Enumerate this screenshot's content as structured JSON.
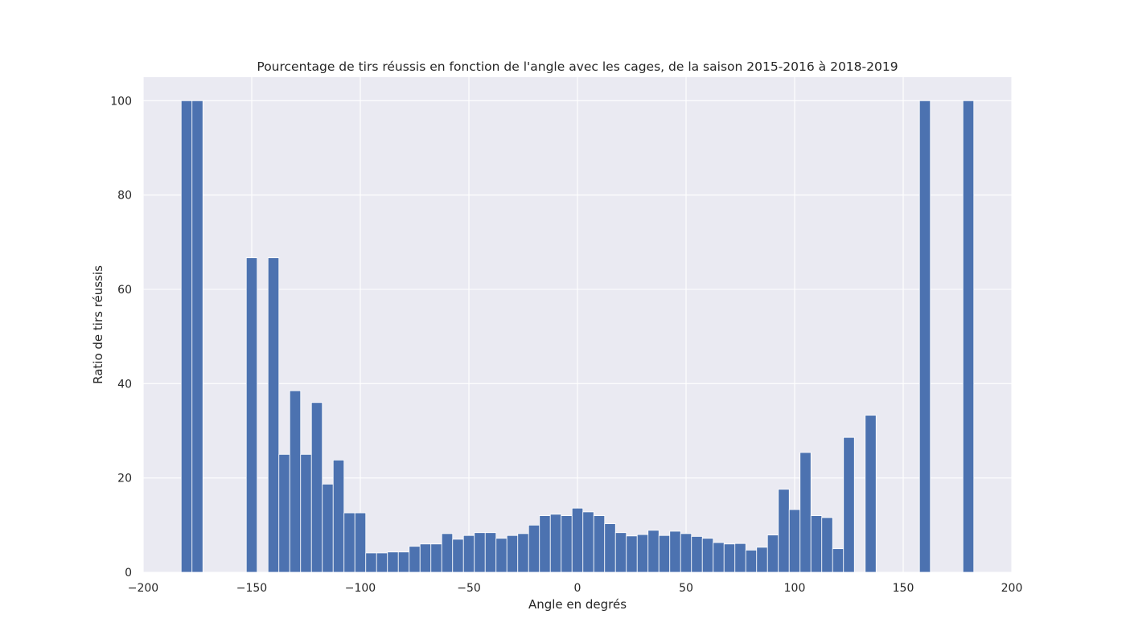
{
  "chart_data": {
    "type": "bar",
    "title": "Pourcentage de tirs réussis en fonction de l'angle avec les cages, de la saison 2015-2016 à 2018-2019",
    "xlabel": "Angle en degrés",
    "ylabel": "Ratio de tirs réussis",
    "xlim": [
      -200,
      200
    ],
    "ylim": [
      0,
      105
    ],
    "xticks": [
      -200,
      -150,
      -100,
      -50,
      0,
      50,
      100,
      150,
      200
    ],
    "yticks": [
      0,
      20,
      40,
      60,
      80,
      100
    ],
    "xtick_labels": [
      "−200",
      "−150",
      "−100",
      "−50",
      "0",
      "50",
      "100",
      "150",
      "200"
    ],
    "ytick_labels": [
      "0",
      "20",
      "40",
      "60",
      "80",
      "100"
    ],
    "bin_width": 5,
    "grid": true,
    "colors": {
      "bar": "#4c72b0",
      "background": "#eaeaf2",
      "grid": "#ffffff"
    },
    "bins": [
      {
        "x": -180,
        "y": 100
      },
      {
        "x": -175,
        "y": 100
      },
      {
        "x": -150,
        "y": 66.7
      },
      {
        "x": -140,
        "y": 66.7
      },
      {
        "x": -135,
        "y": 25
      },
      {
        "x": -130,
        "y": 38.5
      },
      {
        "x": -125,
        "y": 25
      },
      {
        "x": -120,
        "y": 36
      },
      {
        "x": -115,
        "y": 18.7
      },
      {
        "x": -110,
        "y": 23.8
      },
      {
        "x": -105,
        "y": 12.6
      },
      {
        "x": -100,
        "y": 12.6
      },
      {
        "x": -95,
        "y": 4.1
      },
      {
        "x": -90,
        "y": 4.1
      },
      {
        "x": -85,
        "y": 4.3
      },
      {
        "x": -80,
        "y": 4.3
      },
      {
        "x": -75,
        "y": 5.5
      },
      {
        "x": -70,
        "y": 6
      },
      {
        "x": -65,
        "y": 6
      },
      {
        "x": -60,
        "y": 8.2
      },
      {
        "x": -55,
        "y": 7
      },
      {
        "x": -50,
        "y": 7.8
      },
      {
        "x": -45,
        "y": 8.4
      },
      {
        "x": -40,
        "y": 8.4
      },
      {
        "x": -35,
        "y": 7.2
      },
      {
        "x": -30,
        "y": 7.8
      },
      {
        "x": -25,
        "y": 8.2
      },
      {
        "x": -20,
        "y": 10
      },
      {
        "x": -15,
        "y": 12
      },
      {
        "x": -10,
        "y": 12.3
      },
      {
        "x": -5,
        "y": 12
      },
      {
        "x": 0,
        "y": 13.6
      },
      {
        "x": 5,
        "y": 12.8
      },
      {
        "x": 10,
        "y": 12
      },
      {
        "x": 15,
        "y": 10.3
      },
      {
        "x": 20,
        "y": 8.4
      },
      {
        "x": 25,
        "y": 7.7
      },
      {
        "x": 30,
        "y": 8
      },
      {
        "x": 35,
        "y": 8.9
      },
      {
        "x": 40,
        "y": 7.8
      },
      {
        "x": 45,
        "y": 8.7
      },
      {
        "x": 50,
        "y": 8.2
      },
      {
        "x": 55,
        "y": 7.6
      },
      {
        "x": 60,
        "y": 7.2
      },
      {
        "x": 65,
        "y": 6.3
      },
      {
        "x": 70,
        "y": 6
      },
      {
        "x": 75,
        "y": 6.1
      },
      {
        "x": 80,
        "y": 4.7
      },
      {
        "x": 85,
        "y": 5.3
      },
      {
        "x": 90,
        "y": 7.9
      },
      {
        "x": 95,
        "y": 17.6
      },
      {
        "x": 100,
        "y": 13.3
      },
      {
        "x": 105,
        "y": 25.4
      },
      {
        "x": 110,
        "y": 12
      },
      {
        "x": 115,
        "y": 11.6
      },
      {
        "x": 120,
        "y": 5
      },
      {
        "x": 125,
        "y": 28.6
      },
      {
        "x": 135,
        "y": 33.3
      },
      {
        "x": 160,
        "y": 100
      },
      {
        "x": 180,
        "y": 100
      }
    ]
  }
}
